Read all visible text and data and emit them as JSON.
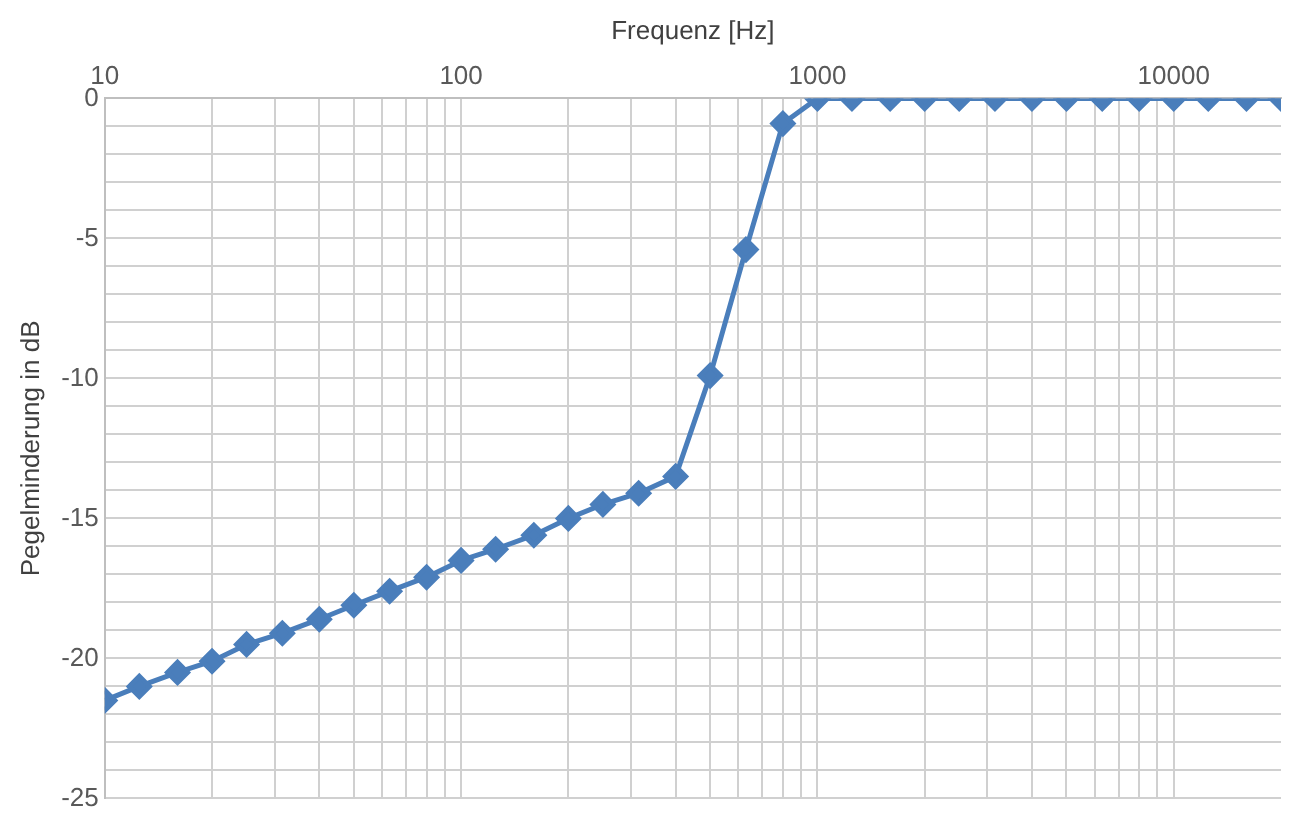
{
  "chart_data": {
    "type": "line",
    "xlabel": "Frequenz [Hz]",
    "ylabel": "Pegelminderung in dB",
    "x": [
      10,
      12.5,
      16,
      20,
      25,
      31.5,
      40,
      50,
      63,
      80,
      100,
      125,
      160,
      200,
      250,
      315,
      400,
      500,
      630,
      800,
      1000,
      1250,
      1600,
      2000,
      2500,
      3150,
      4000,
      5000,
      6300,
      8000,
      10000,
      12500,
      16000,
      20000
    ],
    "series": [
      {
        "color": "#4a7ebb",
        "values": [
          -21.5,
          -21,
          -20.5,
          -20.1,
          -19.5,
          -19.1,
          -18.6,
          -18.1,
          -17.6,
          -17.1,
          -16.5,
          -16.1,
          -15.6,
          -15,
          -14.5,
          -14.1,
          -13.5,
          -9.9,
          -5.4,
          -0.9,
          0,
          0,
          0,
          0,
          0,
          0,
          0,
          0,
          0,
          0,
          0,
          0,
          0,
          0
        ]
      }
    ],
    "log": "x",
    "xlim": [
      10,
      20000
    ],
    "ylim": [
      -25,
      0
    ],
    "xticks": [
      10,
      {
        "value": 20,
        "label": null
      },
      {
        "value": 30,
        "label": null
      },
      {
        "value": 40,
        "label": null
      },
      {
        "value": 50,
        "label": null
      },
      {
        "value": 60,
        "label": null
      },
      {
        "value": 70,
        "label": null
      },
      {
        "value": 80,
        "label": null
      },
      {
        "value": 90,
        "label": null
      },
      100,
      {
        "value": 200,
        "label": null
      },
      {
        "value": 300,
        "label": null
      },
      {
        "value": 400,
        "label": null
      },
      {
        "value": 500,
        "label": null
      },
      {
        "value": 600,
        "label": null
      },
      {
        "value": 700,
        "label": null
      },
      {
        "value": 800,
        "label": null
      },
      {
        "value": 900,
        "label": null
      },
      1000,
      {
        "value": 2000,
        "label": null
      },
      {
        "value": 3000,
        "label": null
      },
      {
        "value": 4000,
        "label": null
      },
      {
        "value": 5000,
        "label": null
      },
      {
        "value": 6000,
        "label": null
      },
      {
        "value": 7000,
        "label": null
      },
      {
        "value": 8000,
        "label": null
      },
      {
        "value": 9000,
        "label": null
      },
      10000
    ],
    "yticks": [
      -25,
      {
        "value": -24,
        "label": null
      },
      {
        "value": -23,
        "label": null
      },
      {
        "value": -22,
        "label": null
      },
      {
        "value": -21,
        "label": null
      },
      -20,
      {
        "value": -19,
        "label": null
      },
      {
        "value": -18,
        "label": null
      },
      {
        "value": -17,
        "label": null
      },
      {
        "value": -16,
        "label": null
      },
      -15,
      {
        "value": -14,
        "label": null
      },
      {
        "value": -13,
        "label": null
      },
      {
        "value": -12,
        "label": null
      },
      {
        "value": -11,
        "label": null
      },
      -10,
      {
        "value": -9,
        "label": null
      },
      {
        "value": -8,
        "label": null
      },
      {
        "value": -7,
        "label": null
      },
      {
        "value": -6,
        "label": null
      },
      -5,
      {
        "value": -4,
        "label": null
      },
      {
        "value": -3,
        "label": null
      },
      {
        "value": -2,
        "label": null
      },
      {
        "value": -1,
        "label": null
      },
      0
    ],
    "grid": true,
    "marker": "diamond",
    "line_style": "solid",
    "legend": false
  }
}
